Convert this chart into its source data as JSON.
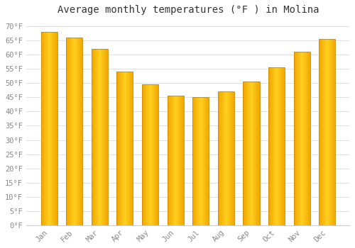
{
  "title": "Average monthly temperatures (°F ) in Molina",
  "months": [
    "Jan",
    "Feb",
    "Mar",
    "Apr",
    "May",
    "Jun",
    "Jul",
    "Aug",
    "Sep",
    "Oct",
    "Nov",
    "Dec"
  ],
  "values": [
    68,
    66,
    62,
    54,
    49.5,
    45.5,
    45,
    47,
    50.5,
    55.5,
    61,
    65.5
  ],
  "bar_color_center": "#FFD966",
  "bar_color_edge": "#F0A500",
  "background_color": "#FFFFFF",
  "grid_color": "#E0E0E0",
  "ylim": [
    0,
    72
  ],
  "yticks": [
    0,
    5,
    10,
    15,
    20,
    25,
    30,
    35,
    40,
    45,
    50,
    55,
    60,
    65,
    70
  ],
  "title_fontsize": 10,
  "tick_fontsize": 7.5,
  "tick_color": "#888888",
  "title_color": "#333333",
  "bar_width": 0.65
}
